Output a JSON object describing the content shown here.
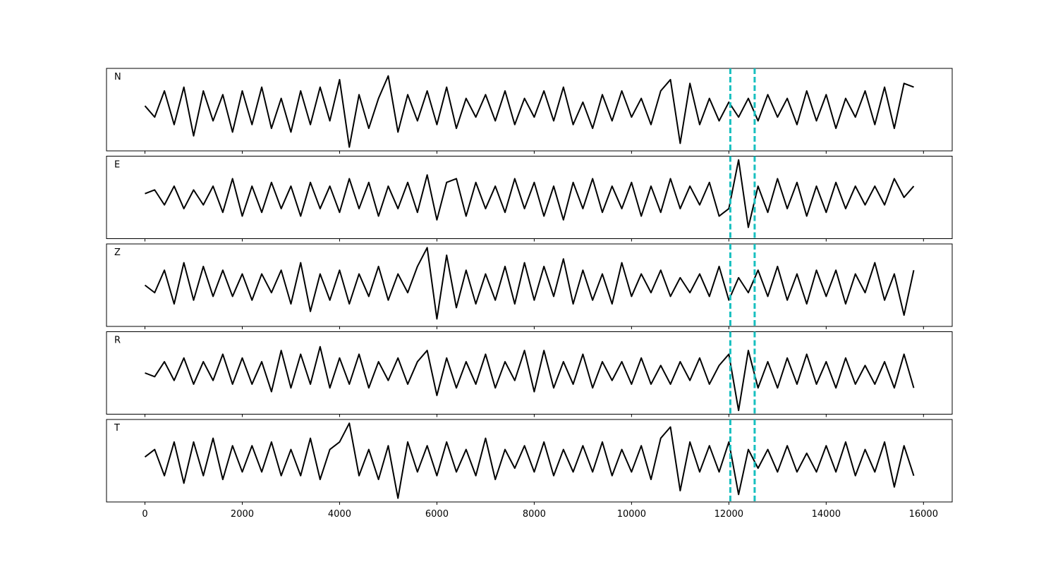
{
  "chart_data": {
    "type": "line",
    "layout": "stacked",
    "x": [
      0,
      200,
      400,
      600,
      800,
      1000,
      1200,
      1400,
      1600,
      1800,
      2000,
      2200,
      2400,
      2600,
      2800,
      3000,
      3200,
      3400,
      3600,
      3800,
      4000,
      4200,
      4400,
      4600,
      4800,
      5000,
      5200,
      5400,
      5600,
      5800,
      6000,
      6200,
      6400,
      6600,
      6800,
      7000,
      7200,
      7400,
      7600,
      7800,
      8000,
      8200,
      8400,
      8600,
      8800,
      9000,
      9200,
      9400,
      9600,
      9800,
      10000,
      10200,
      10400,
      10600,
      10800,
      11000,
      11200,
      11400,
      11600,
      11800,
      12000,
      12200,
      12400,
      12600,
      12800,
      13000,
      13200,
      13400,
      13600,
      13800,
      14000,
      14200,
      14400,
      14600,
      14800,
      15000,
      15200,
      15400,
      15600,
      15800
    ],
    "series": [
      {
        "name": "N",
        "color": "#000000",
        "values": [
          0.1,
          -0.2,
          0.5,
          -0.4,
          0.6,
          -0.7,
          0.5,
          -0.3,
          0.4,
          -0.6,
          0.5,
          -0.4,
          0.6,
          -0.5,
          0.3,
          -0.6,
          0.5,
          -0.4,
          0.6,
          -0.3,
          0.8,
          -1.0,
          0.4,
          -0.5,
          0.3,
          0.9,
          -0.6,
          0.4,
          -0.3,
          0.5,
          -0.4,
          0.6,
          -0.5,
          0.3,
          -0.2,
          0.4,
          -0.3,
          0.5,
          -0.4,
          0.3,
          -0.2,
          0.5,
          -0.3,
          0.6,
          -0.4,
          0.2,
          -0.5,
          0.4,
          -0.3,
          0.5,
          -0.2,
          0.3,
          -0.4,
          0.5,
          0.8,
          -0.9,
          0.7,
          -0.4,
          0.3,
          -0.3,
          0.2,
          -0.2,
          0.3,
          -0.3,
          0.4,
          -0.2,
          0.3,
          -0.4,
          0.5,
          -0.3,
          0.4,
          -0.5,
          0.3,
          -0.2,
          0.5,
          -0.4,
          0.6,
          -0.5,
          0.7,
          0.6
        ]
      },
      {
        "name": "E",
        "color": "#000000",
        "values": [
          0.1,
          0.2,
          -0.2,
          0.3,
          -0.3,
          0.2,
          -0.2,
          0.3,
          -0.4,
          0.5,
          -0.5,
          0.3,
          -0.4,
          0.4,
          -0.3,
          0.3,
          -0.5,
          0.4,
          -0.3,
          0.3,
          -0.4,
          0.5,
          -0.3,
          0.4,
          -0.5,
          0.3,
          -0.3,
          0.4,
          -0.4,
          0.6,
          -0.6,
          0.4,
          0.5,
          -0.5,
          0.4,
          -0.3,
          0.3,
          -0.4,
          0.5,
          -0.3,
          0.4,
          -0.5,
          0.3,
          -0.6,
          0.4,
          -0.3,
          0.5,
          -0.4,
          0.3,
          -0.3,
          0.4,
          -0.5,
          0.3,
          -0.4,
          0.5,
          -0.3,
          0.3,
          -0.2,
          0.4,
          -0.5,
          -0.3,
          1.0,
          -0.8,
          0.3,
          -0.4,
          0.5,
          -0.3,
          0.4,
          -0.5,
          0.3,
          -0.4,
          0.4,
          -0.3,
          0.3,
          -0.2,
          0.3,
          -0.2,
          0.5,
          0.0,
          0.3
        ]
      },
      {
        "name": "Z",
        "color": "#000000",
        "values": [
          0.0,
          -0.2,
          0.4,
          -0.5,
          0.6,
          -0.4,
          0.5,
          -0.3,
          0.4,
          -0.3,
          0.3,
          -0.4,
          0.3,
          -0.2,
          0.4,
          -0.5,
          0.6,
          -0.7,
          0.3,
          -0.4,
          0.4,
          -0.5,
          0.3,
          -0.3,
          0.5,
          -0.4,
          0.3,
          -0.2,
          0.5,
          1.0,
          -0.9,
          0.8,
          -0.6,
          0.4,
          -0.5,
          0.3,
          -0.4,
          0.5,
          -0.5,
          0.6,
          -0.4,
          0.5,
          -0.3,
          0.7,
          -0.5,
          0.4,
          -0.4,
          0.3,
          -0.5,
          0.6,
          -0.3,
          0.3,
          -0.2,
          0.4,
          -0.3,
          0.2,
          -0.2,
          0.3,
          -0.3,
          0.5,
          -0.4,
          0.2,
          -0.2,
          0.4,
          -0.3,
          0.5,
          -0.4,
          0.3,
          -0.5,
          0.4,
          -0.3,
          0.4,
          -0.5,
          0.3,
          -0.2,
          0.6,
          -0.4,
          0.3,
          -0.8,
          0.4
        ]
      },
      {
        "name": "R",
        "color": "#000000",
        "values": [
          0.0,
          -0.1,
          0.3,
          -0.2,
          0.4,
          -0.3,
          0.3,
          -0.2,
          0.5,
          -0.3,
          0.4,
          -0.3,
          0.3,
          -0.5,
          0.6,
          -0.4,
          0.5,
          -0.3,
          0.7,
          -0.4,
          0.4,
          -0.3,
          0.5,
          -0.4,
          0.3,
          -0.2,
          0.4,
          -0.3,
          0.3,
          0.6,
          -0.6,
          0.4,
          -0.4,
          0.3,
          -0.3,
          0.5,
          -0.4,
          0.3,
          -0.2,
          0.6,
          -0.5,
          0.6,
          -0.4,
          0.3,
          -0.3,
          0.5,
          -0.4,
          0.3,
          -0.2,
          0.3,
          -0.3,
          0.4,
          -0.3,
          0.2,
          -0.3,
          0.3,
          -0.2,
          0.4,
          -0.3,
          0.2,
          0.5,
          -1.0,
          0.6,
          -0.4,
          0.3,
          -0.4,
          0.4,
          -0.3,
          0.5,
          -0.3,
          0.3,
          -0.4,
          0.4,
          -0.3,
          0.2,
          -0.3,
          0.3,
          -0.4,
          0.5,
          -0.4
        ]
      },
      {
        "name": "T",
        "color": "#000000",
        "values": [
          0.1,
          0.3,
          -0.4,
          0.5,
          -0.6,
          0.5,
          -0.4,
          0.6,
          -0.5,
          0.4,
          -0.3,
          0.4,
          -0.3,
          0.5,
          -0.4,
          0.3,
          -0.4,
          0.6,
          -0.5,
          0.3,
          0.5,
          1.0,
          -0.4,
          0.3,
          -0.5,
          0.4,
          -1.0,
          0.5,
          -0.3,
          0.4,
          -0.4,
          0.5,
          -0.3,
          0.3,
          -0.4,
          0.6,
          -0.5,
          0.3,
          -0.2,
          0.4,
          -0.3,
          0.5,
          -0.4,
          0.3,
          -0.3,
          0.4,
          -0.3,
          0.5,
          -0.4,
          0.3,
          -0.3,
          0.4,
          -0.5,
          0.6,
          0.9,
          -0.8,
          0.5,
          -0.3,
          0.4,
          -0.3,
          0.5,
          -0.9,
          0.3,
          -0.2,
          0.3,
          -0.3,
          0.4,
          -0.3,
          0.2,
          -0.3,
          0.4,
          -0.3,
          0.5,
          -0.4,
          0.3,
          -0.3,
          0.5,
          -0.7,
          0.4,
          -0.4
        ]
      }
    ],
    "xlim": [
      -790,
      16590
    ],
    "xticks": [
      0,
      2000,
      4000,
      6000,
      8000,
      10000,
      12000,
      14000,
      16000
    ],
    "ylim": [
      -1.1,
      1.1
    ],
    "markers": {
      "x": [
        12030,
        12530
      ],
      "color": "#17bfbf",
      "style": "dashed"
    }
  }
}
